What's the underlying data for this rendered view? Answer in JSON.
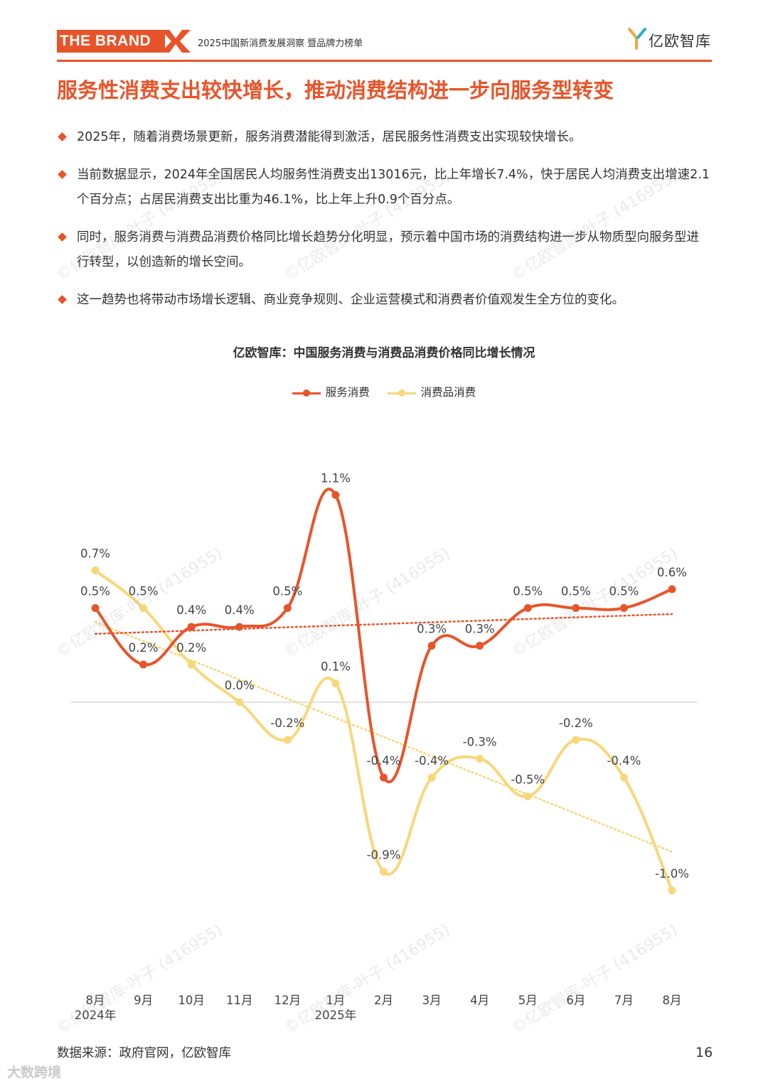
{
  "header": {
    "brand": "THE BRAND",
    "report_title": "2025中国新消费发展洞察 暨品牌力榜单",
    "logo_text": "亿欧智库"
  },
  "page_title": "服务性消费支出较快增长，推动消费结构进一步向服务型转变",
  "bullets": [
    "2025年，随着消费场景更新，服务消费潜能得到激活，居民服务性消费支出实现较快增长。",
    "当前数据显示，2024年全国居民人均服务性消费支出13016元，比上年增长7.4%，快于居民人均消费支出增速2.1个百分点；占居民消费支出比重为46.1%，比上年上升0.9个百分点。",
    "同时，服务消费与消费品消费价格同比增长趋势分化明显，预示着中国市场的消费结构进一步从物质型向服务型进行转型，以创造新的增长空间。",
    "这一趋势也将带动市场增长逻辑、商业竞争规则、企业运营模式和消费者价值观发生全方位的变化。"
  ],
  "chart_data": {
    "type": "line",
    "title": "亿欧智库：中国服务消费与消费品消费价格同比增长情况",
    "categories": [
      "8月",
      "9月",
      "10月",
      "11月",
      "12月",
      "1月",
      "2月",
      "3月",
      "4月",
      "5月",
      "6月",
      "7月",
      "8月"
    ],
    "year_labels": [
      {
        "index": 0,
        "label": "2024年"
      },
      {
        "index": 5,
        "label": "2025年"
      }
    ],
    "ylim": [
      -1.1,
      1.3
    ],
    "unit": "%",
    "legend_position": "top-center",
    "smooth": true,
    "trendline": true,
    "series": [
      {
        "name": "服务消费",
        "color": "#e8542a",
        "values": [
          0.5,
          0.2,
          0.4,
          0.4,
          0.5,
          1.1,
          -0.4,
          0.3,
          0.3,
          0.5,
          0.5,
          0.5,
          0.6
        ],
        "labels": [
          "0.5%",
          "0.2%",
          "0.4%",
          "0.4%",
          "0.5%",
          "1.1%",
          "-0.4%",
          "0.3%",
          "0.3%",
          "0.5%",
          "0.5%",
          "0.5%",
          "0.6%"
        ]
      },
      {
        "name": "消费品消费",
        "color": "#f7d77a",
        "values": [
          0.7,
          0.5,
          0.2,
          0.0,
          -0.2,
          0.1,
          -0.9,
          -0.4,
          -0.3,
          -0.5,
          -0.2,
          -0.4,
          -1.0
        ],
        "labels": [
          "0.7%",
          "0.5%",
          "0.2%",
          "0.0%",
          "-0.2%",
          "0.1%",
          "-0.9%",
          "-0.4%",
          "-0.3%",
          "-0.5%",
          "-0.2%",
          "-0.4%",
          "-1.0%"
        ]
      }
    ]
  },
  "source": "数据来源：政府官网，亿欧智库",
  "page_number": "16",
  "watermark_text": "©亿欧智库-叶子 (416955)",
  "corner_mark": "大数跨境"
}
